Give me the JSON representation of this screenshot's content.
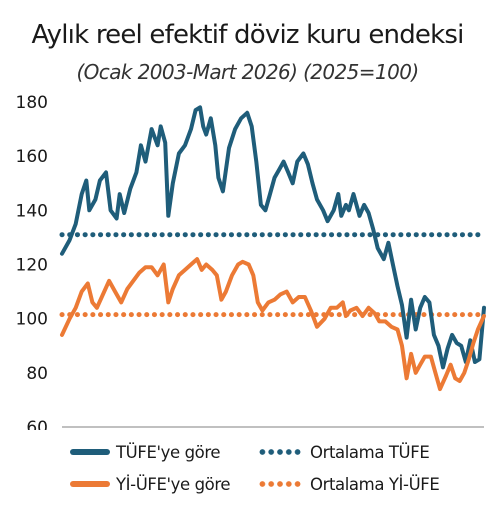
{
  "chart_data": {
    "type": "line",
    "title": "Aylık reel efektif döviz kuru endeksi",
    "subtitle": "(Ocak 2003-Mart 2026) (2025=100)",
    "xlabel": "",
    "ylabel": "",
    "x_start": "2003-01",
    "x_end": "2026-03",
    "ylim": [
      60,
      180
    ],
    "yticks": [
      "60",
      "80",
      "100",
      "120",
      "140",
      "160",
      "180"
    ],
    "grid": false,
    "legend_position": "bottom",
    "colors": {
      "tufe": "#1f5d7a",
      "yiufe": "#ec7a35",
      "axis": "#9a9a9a"
    },
    "series": [
      {
        "name": "TÜFE'ye göre",
        "style": "solid",
        "points": [
          [
            "2003-01",
            124
          ],
          [
            "2003-06",
            129
          ],
          [
            "2003-10",
            135
          ],
          [
            "2004-02",
            146
          ],
          [
            "2004-05",
            151
          ],
          [
            "2004-07",
            140
          ],
          [
            "2004-11",
            144
          ],
          [
            "2005-02",
            151
          ],
          [
            "2005-06",
            154
          ],
          [
            "2005-09",
            140
          ],
          [
            "2006-01",
            137
          ],
          [
            "2006-03",
            146
          ],
          [
            "2006-06",
            139
          ],
          [
            "2006-10",
            148
          ],
          [
            "2007-02",
            154
          ],
          [
            "2007-05",
            164
          ],
          [
            "2007-08",
            158
          ],
          [
            "2007-12",
            170
          ],
          [
            "2008-04",
            164
          ],
          [
            "2008-06",
            171
          ],
          [
            "2008-09",
            165
          ],
          [
            "2008-11",
            138
          ],
          [
            "2009-02",
            150
          ],
          [
            "2009-06",
            161
          ],
          [
            "2009-10",
            164
          ],
          [
            "2010-02",
            170
          ],
          [
            "2010-05",
            177
          ],
          [
            "2010-08",
            178
          ],
          [
            "2010-10",
            171
          ],
          [
            "2010-12",
            168
          ],
          [
            "2011-03",
            174
          ],
          [
            "2011-06",
            164
          ],
          [
            "2011-08",
            152
          ],
          [
            "2011-11",
            147
          ],
          [
            "2012-03",
            163
          ],
          [
            "2012-07",
            170
          ],
          [
            "2012-11",
            174
          ],
          [
            "2013-03",
            176
          ],
          [
            "2013-06",
            171
          ],
          [
            "2013-09",
            158
          ],
          [
            "2013-12",
            142
          ],
          [
            "2014-03",
            140
          ],
          [
            "2014-06",
            146
          ],
          [
            "2014-09",
            152
          ],
          [
            "2014-12",
            155
          ],
          [
            "2015-03",
            158
          ],
          [
            "2015-06",
            154
          ],
          [
            "2015-09",
            150
          ],
          [
            "2015-12",
            158
          ],
          [
            "2016-04",
            161
          ],
          [
            "2016-07",
            157
          ],
          [
            "2016-10",
            150
          ],
          [
            "2017-01",
            144
          ],
          [
            "2017-05",
            140
          ],
          [
            "2017-08",
            136
          ],
          [
            "2017-12",
            140
          ],
          [
            "2018-03",
            146
          ],
          [
            "2018-05",
            138
          ],
          [
            "2018-08",
            142
          ],
          [
            "2018-10",
            140
          ],
          [
            "2019-01",
            146
          ],
          [
            "2019-05",
            138
          ],
          [
            "2019-08",
            142
          ],
          [
            "2019-11",
            139
          ],
          [
            "2020-02",
            133
          ],
          [
            "2020-05",
            126
          ],
          [
            "2020-09",
            122
          ],
          [
            "2020-12",
            128
          ],
          [
            "2021-03",
            120
          ],
          [
            "2021-06",
            112
          ],
          [
            "2021-09",
            105
          ],
          [
            "2021-12",
            93
          ],
          [
            "2022-03",
            107
          ],
          [
            "2022-06",
            96
          ],
          [
            "2022-09",
            104
          ],
          [
            "2022-12",
            108
          ],
          [
            "2023-03",
            106
          ],
          [
            "2023-06",
            94
          ],
          [
            "2023-09",
            90
          ],
          [
            "2023-12",
            82
          ],
          [
            "2024-03",
            89
          ],
          [
            "2024-06",
            94
          ],
          [
            "2024-09",
            91
          ],
          [
            "2024-12",
            90
          ],
          [
            "2025-03",
            84
          ],
          [
            "2025-06",
            92
          ],
          [
            "2025-09",
            84
          ],
          [
            "2025-12",
            85
          ],
          [
            "2026-03",
            104
          ]
        ]
      },
      {
        "name": "Yİ-ÜFE'ye göre",
        "style": "solid",
        "points": [
          [
            "2003-01",
            94
          ],
          [
            "2003-06",
            100
          ],
          [
            "2003-10",
            104
          ],
          [
            "2004-02",
            110
          ],
          [
            "2004-06",
            113
          ],
          [
            "2004-09",
            106
          ],
          [
            "2004-12",
            104
          ],
          [
            "2005-04",
            109
          ],
          [
            "2005-08",
            114
          ],
          [
            "2005-12",
            110
          ],
          [
            "2006-04",
            106
          ],
          [
            "2006-08",
            111
          ],
          [
            "2006-12",
            114
          ],
          [
            "2007-04",
            117
          ],
          [
            "2007-08",
            119
          ],
          [
            "2007-12",
            119
          ],
          [
            "2008-04",
            116
          ],
          [
            "2008-08",
            120
          ],
          [
            "2008-11",
            106
          ],
          [
            "2009-02",
            111
          ],
          [
            "2009-06",
            116
          ],
          [
            "2009-10",
            118
          ],
          [
            "2010-02",
            120
          ],
          [
            "2010-06",
            122
          ],
          [
            "2010-09",
            118
          ],
          [
            "2010-12",
            120
          ],
          [
            "2011-04",
            118
          ],
          [
            "2011-07",
            116
          ],
          [
            "2011-10",
            107
          ],
          [
            "2012-01",
            110
          ],
          [
            "2012-05",
            116
          ],
          [
            "2012-09",
            120
          ],
          [
            "2012-12",
            121
          ],
          [
            "2013-04",
            120
          ],
          [
            "2013-07",
            116
          ],
          [
            "2013-10",
            106
          ],
          [
            "2014-01",
            103
          ],
          [
            "2014-05",
            106
          ],
          [
            "2014-09",
            107
          ],
          [
            "2015-01",
            109
          ],
          [
            "2015-05",
            110
          ],
          [
            "2015-09",
            106
          ],
          [
            "2016-01",
            108
          ],
          [
            "2016-05",
            108
          ],
          [
            "2016-09",
            103
          ],
          [
            "2017-01",
            97
          ],
          [
            "2017-06",
            100
          ],
          [
            "2017-10",
            104
          ],
          [
            "2018-02",
            104
          ],
          [
            "2018-06",
            106
          ],
          [
            "2018-08",
            101
          ],
          [
            "2018-11",
            103
          ],
          [
            "2019-03",
            104
          ],
          [
            "2019-07",
            101
          ],
          [
            "2019-11",
            104
          ],
          [
            "2020-03",
            102
          ],
          [
            "2020-06",
            99
          ],
          [
            "2020-10",
            99
          ],
          [
            "2021-02",
            97
          ],
          [
            "2021-06",
            96
          ],
          [
            "2021-09",
            90
          ],
          [
            "2021-12",
            78
          ],
          [
            "2022-03",
            87
          ],
          [
            "2022-06",
            80
          ],
          [
            "2022-09",
            83
          ],
          [
            "2022-12",
            86
          ],
          [
            "2023-04",
            86
          ],
          [
            "2023-07",
            80
          ],
          [
            "2023-10",
            74
          ],
          [
            "2024-02",
            79
          ],
          [
            "2024-05",
            83
          ],
          [
            "2024-08",
            78
          ],
          [
            "2024-11",
            77
          ],
          [
            "2025-02",
            80
          ],
          [
            "2025-05",
            85
          ],
          [
            "2025-08",
            91
          ],
          [
            "2025-11",
            96
          ],
          [
            "2026-03",
            101
          ]
        ]
      },
      {
        "name": "Ortalama TÜFE",
        "style": "dotted",
        "points": [
          [
            "2003-01",
            131
          ],
          [
            "2026-03",
            131
          ]
        ]
      },
      {
        "name": "Ortalama Yİ-ÜFE",
        "style": "dotted",
        "points": [
          [
            "2003-01",
            101.5
          ],
          [
            "2026-03",
            101.5
          ]
        ]
      }
    ]
  },
  "legend": {
    "tufe": "TÜFE'ye göre",
    "avg_tufe": "Ortalama TÜFE",
    "yiufe": "Yİ-ÜFE'ye göre",
    "avg_yiufe": "Ortalama Yİ-ÜFE"
  }
}
